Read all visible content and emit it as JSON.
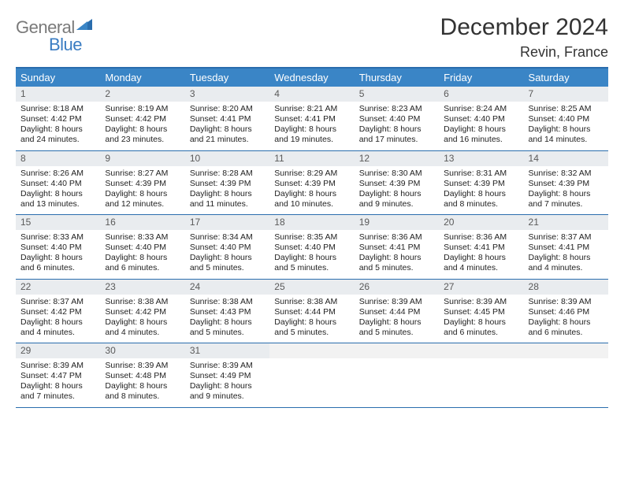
{
  "brand": {
    "part1": "General",
    "part2": "Blue"
  },
  "title": "December 2024",
  "location": "Revin, France",
  "colors": {
    "header_bg": "#3a85c6",
    "header_text": "#ffffff",
    "border": "#2a6dad",
    "daynum_bg": "#e9ecef",
    "brand_gray": "#7a7a7a",
    "brand_blue": "#3a7cc2"
  },
  "weekdays": [
    "Sunday",
    "Monday",
    "Tuesday",
    "Wednesday",
    "Thursday",
    "Friday",
    "Saturday"
  ],
  "days": [
    {
      "n": "1",
      "sr": "Sunrise: 8:18 AM",
      "ss": "Sunset: 4:42 PM",
      "d1": "Daylight: 8 hours",
      "d2": "and 24 minutes."
    },
    {
      "n": "2",
      "sr": "Sunrise: 8:19 AM",
      "ss": "Sunset: 4:42 PM",
      "d1": "Daylight: 8 hours",
      "d2": "and 23 minutes."
    },
    {
      "n": "3",
      "sr": "Sunrise: 8:20 AM",
      "ss": "Sunset: 4:41 PM",
      "d1": "Daylight: 8 hours",
      "d2": "and 21 minutes."
    },
    {
      "n": "4",
      "sr": "Sunrise: 8:21 AM",
      "ss": "Sunset: 4:41 PM",
      "d1": "Daylight: 8 hours",
      "d2": "and 19 minutes."
    },
    {
      "n": "5",
      "sr": "Sunrise: 8:23 AM",
      "ss": "Sunset: 4:40 PM",
      "d1": "Daylight: 8 hours",
      "d2": "and 17 minutes."
    },
    {
      "n": "6",
      "sr": "Sunrise: 8:24 AM",
      "ss": "Sunset: 4:40 PM",
      "d1": "Daylight: 8 hours",
      "d2": "and 16 minutes."
    },
    {
      "n": "7",
      "sr": "Sunrise: 8:25 AM",
      "ss": "Sunset: 4:40 PM",
      "d1": "Daylight: 8 hours",
      "d2": "and 14 minutes."
    },
    {
      "n": "8",
      "sr": "Sunrise: 8:26 AM",
      "ss": "Sunset: 4:40 PM",
      "d1": "Daylight: 8 hours",
      "d2": "and 13 minutes."
    },
    {
      "n": "9",
      "sr": "Sunrise: 8:27 AM",
      "ss": "Sunset: 4:39 PM",
      "d1": "Daylight: 8 hours",
      "d2": "and 12 minutes."
    },
    {
      "n": "10",
      "sr": "Sunrise: 8:28 AM",
      "ss": "Sunset: 4:39 PM",
      "d1": "Daylight: 8 hours",
      "d2": "and 11 minutes."
    },
    {
      "n": "11",
      "sr": "Sunrise: 8:29 AM",
      "ss": "Sunset: 4:39 PM",
      "d1": "Daylight: 8 hours",
      "d2": "and 10 minutes."
    },
    {
      "n": "12",
      "sr": "Sunrise: 8:30 AM",
      "ss": "Sunset: 4:39 PM",
      "d1": "Daylight: 8 hours",
      "d2": "and 9 minutes."
    },
    {
      "n": "13",
      "sr": "Sunrise: 8:31 AM",
      "ss": "Sunset: 4:39 PM",
      "d1": "Daylight: 8 hours",
      "d2": "and 8 minutes."
    },
    {
      "n": "14",
      "sr": "Sunrise: 8:32 AM",
      "ss": "Sunset: 4:39 PM",
      "d1": "Daylight: 8 hours",
      "d2": "and 7 minutes."
    },
    {
      "n": "15",
      "sr": "Sunrise: 8:33 AM",
      "ss": "Sunset: 4:40 PM",
      "d1": "Daylight: 8 hours",
      "d2": "and 6 minutes."
    },
    {
      "n": "16",
      "sr": "Sunrise: 8:33 AM",
      "ss": "Sunset: 4:40 PM",
      "d1": "Daylight: 8 hours",
      "d2": "and 6 minutes."
    },
    {
      "n": "17",
      "sr": "Sunrise: 8:34 AM",
      "ss": "Sunset: 4:40 PM",
      "d1": "Daylight: 8 hours",
      "d2": "and 5 minutes."
    },
    {
      "n": "18",
      "sr": "Sunrise: 8:35 AM",
      "ss": "Sunset: 4:40 PM",
      "d1": "Daylight: 8 hours",
      "d2": "and 5 minutes."
    },
    {
      "n": "19",
      "sr": "Sunrise: 8:36 AM",
      "ss": "Sunset: 4:41 PM",
      "d1": "Daylight: 8 hours",
      "d2": "and 5 minutes."
    },
    {
      "n": "20",
      "sr": "Sunrise: 8:36 AM",
      "ss": "Sunset: 4:41 PM",
      "d1": "Daylight: 8 hours",
      "d2": "and 4 minutes."
    },
    {
      "n": "21",
      "sr": "Sunrise: 8:37 AM",
      "ss": "Sunset: 4:41 PM",
      "d1": "Daylight: 8 hours",
      "d2": "and 4 minutes."
    },
    {
      "n": "22",
      "sr": "Sunrise: 8:37 AM",
      "ss": "Sunset: 4:42 PM",
      "d1": "Daylight: 8 hours",
      "d2": "and 4 minutes."
    },
    {
      "n": "23",
      "sr": "Sunrise: 8:38 AM",
      "ss": "Sunset: 4:42 PM",
      "d1": "Daylight: 8 hours",
      "d2": "and 4 minutes."
    },
    {
      "n": "24",
      "sr": "Sunrise: 8:38 AM",
      "ss": "Sunset: 4:43 PM",
      "d1": "Daylight: 8 hours",
      "d2": "and 5 minutes."
    },
    {
      "n": "25",
      "sr": "Sunrise: 8:38 AM",
      "ss": "Sunset: 4:44 PM",
      "d1": "Daylight: 8 hours",
      "d2": "and 5 minutes."
    },
    {
      "n": "26",
      "sr": "Sunrise: 8:39 AM",
      "ss": "Sunset: 4:44 PM",
      "d1": "Daylight: 8 hours",
      "d2": "and 5 minutes."
    },
    {
      "n": "27",
      "sr": "Sunrise: 8:39 AM",
      "ss": "Sunset: 4:45 PM",
      "d1": "Daylight: 8 hours",
      "d2": "and 6 minutes."
    },
    {
      "n": "28",
      "sr": "Sunrise: 8:39 AM",
      "ss": "Sunset: 4:46 PM",
      "d1": "Daylight: 8 hours",
      "d2": "and 6 minutes."
    },
    {
      "n": "29",
      "sr": "Sunrise: 8:39 AM",
      "ss": "Sunset: 4:47 PM",
      "d1": "Daylight: 8 hours",
      "d2": "and 7 minutes."
    },
    {
      "n": "30",
      "sr": "Sunrise: 8:39 AM",
      "ss": "Sunset: 4:48 PM",
      "d1": "Daylight: 8 hours",
      "d2": "and 8 minutes."
    },
    {
      "n": "31",
      "sr": "Sunrise: 8:39 AM",
      "ss": "Sunset: 4:49 PM",
      "d1": "Daylight: 8 hours",
      "d2": "and 9 minutes."
    }
  ]
}
